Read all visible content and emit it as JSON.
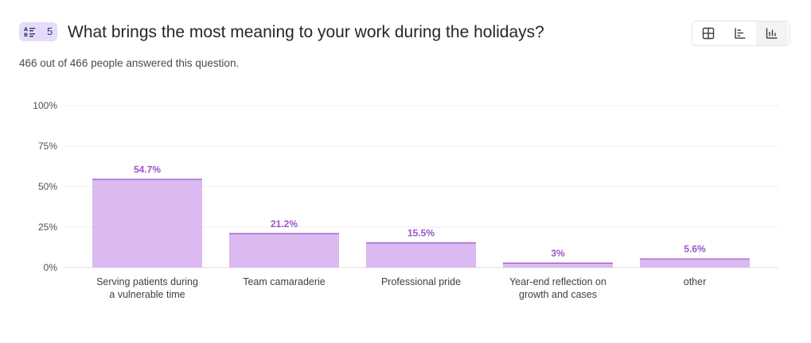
{
  "question": {
    "number": "5",
    "title": "What brings the most meaning to your work during the holidays?",
    "answered": "466 out of 466 people answered this question.",
    "badge_icon": "list-icon"
  },
  "view_buttons": [
    {
      "name": "table-view-button",
      "icon": "grid-icon",
      "active": false
    },
    {
      "name": "horizontal-bar-view-button",
      "icon": "horizontal-bar-chart-icon",
      "active": false
    },
    {
      "name": "vertical-bar-view-button",
      "icon": "vertical-bar-chart-icon",
      "active": true
    }
  ],
  "colors": {
    "bar_fill": "#dbb9f1",
    "bar_top": "#9b55c9",
    "data_label": "#9b55c9",
    "badge_bg": "#e4dcf8"
  },
  "chart_data": {
    "type": "bar",
    "categories": [
      "Serving patients during a vulnerable time",
      "Team camaraderie",
      "Professional pride",
      "Year-end reflection on growth and cases",
      "other"
    ],
    "category_lines": [
      [
        "Serving patients during",
        "a vulnerable time"
      ],
      [
        "Team camaraderie"
      ],
      [
        "Professional pride"
      ],
      [
        "Year-end reflection on",
        "growth and cases"
      ],
      [
        "other"
      ]
    ],
    "values": [
      54.7,
      21.2,
      15.5,
      3,
      5.6
    ],
    "value_labels": [
      "54.7%",
      "21.2%",
      "15.5%",
      "3%",
      "5.6%"
    ],
    "ylim": [
      0,
      100
    ],
    "yticks": [
      0,
      25,
      50,
      75,
      100
    ],
    "ytick_labels": [
      "0%",
      "25%",
      "50%",
      "75%",
      "100%"
    ],
    "grid": true,
    "xlabel": "",
    "ylabel": ""
  }
}
